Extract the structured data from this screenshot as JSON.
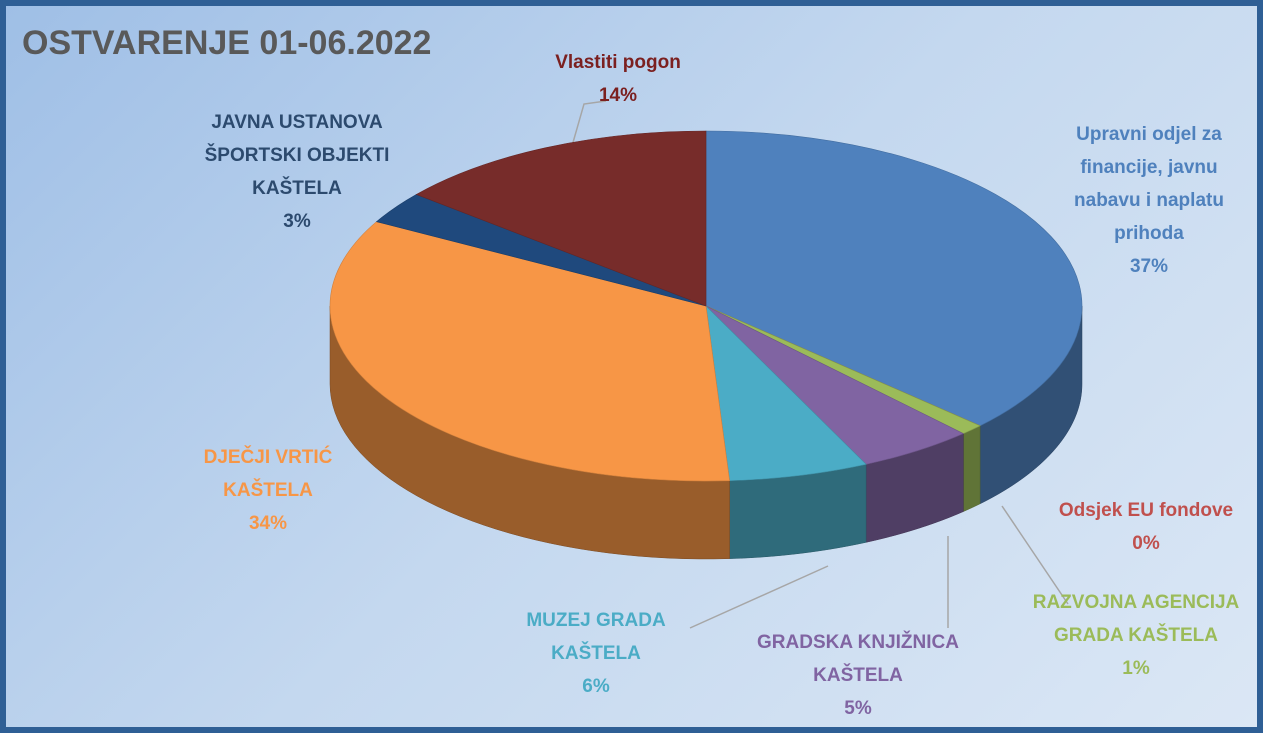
{
  "chart_data": {
    "type": "pie",
    "title": "OSTVARENJE 01-06.2022",
    "categories": [
      "Upravni odjel za financije, javnu nabavu i naplatu prihoda",
      "Odsjek EU fondove",
      "RAZVOJNA AGENCIJA GRADA KAŠTELA",
      "GRADSKA KNJIŽNICA KAŠTELA",
      "MUZEJ GRADA KAŠTELA",
      "DJEČJI VRTIĆ KAŠTELA",
      "JAVNA USTANOVA ŠPORTSKI OBJEKTI KAŠTELA",
      "Vlastiti pogon"
    ],
    "values": [
      37,
      0,
      1,
      5,
      6,
      34,
      3,
      14
    ],
    "value_labels": [
      "37%",
      "0%",
      "1%",
      "5%",
      "6%",
      "34%",
      "3%",
      "14%"
    ],
    "colors": [
      "#4f81bd",
      "#c0504d",
      "#9bbb59",
      "#8064a2",
      "#4bacc6",
      "#f79646",
      "#1f497d",
      "#772c2a"
    ]
  }
}
